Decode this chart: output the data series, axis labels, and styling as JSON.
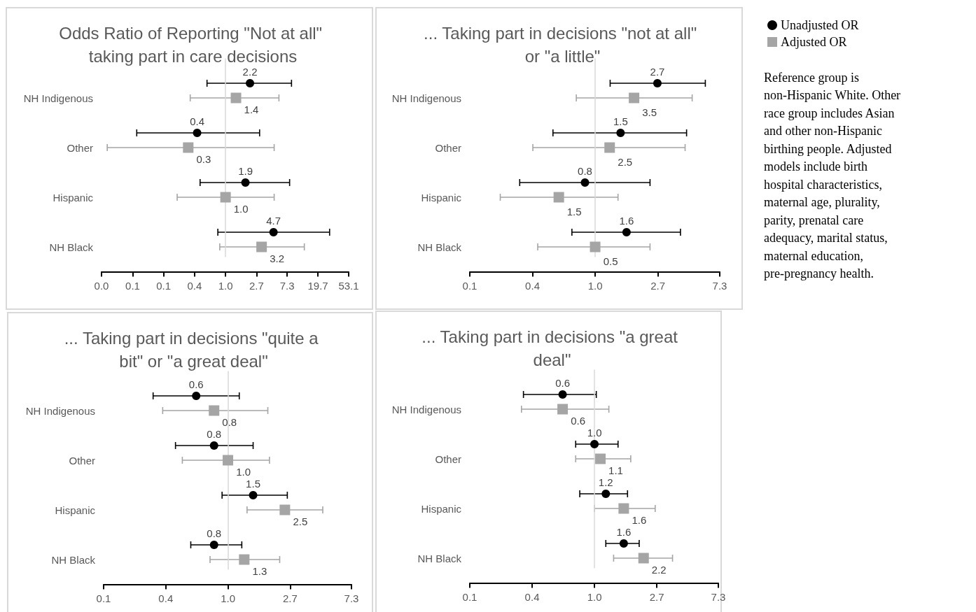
{
  "chart_data": [
    {
      "type": "scatter",
      "orientation": "horizontal",
      "title": "Odds Ratio of Reporting \"Not at all\" taking part in care decisions",
      "categories": [
        "NH Indigenous",
        "Other",
        "Hispanic",
        "NH Black"
      ],
      "log": "x",
      "xlim": [
        0.0183,
        53.1
      ],
      "xticks": [
        {
          "value": 0.0183,
          "label": "0.0"
        },
        {
          "value": 0.05,
          "label": "0.1"
        },
        {
          "value": 0.1353,
          "label": "0.1"
        },
        {
          "value": 0.3679,
          "label": "0.4"
        },
        {
          "value": 1,
          "label": "1.0"
        },
        {
          "value": 2.718,
          "label": "2.7"
        },
        7.3,
        19.7,
        53.1
      ],
      "ref_lines": [
        {
          "axis": "x",
          "value": 1,
          "color": "#d9d9d9"
        }
      ],
      "series": [
        {
          "color": "#000000",
          "marker": "circle",
          "values": [
            2.2,
            0.4,
            1.9,
            4.7
          ],
          "errors": [
            [
              0.55,
              8.4
            ],
            [
              0.057,
              3.0
            ],
            [
              0.44,
              7.9
            ],
            [
              0.78,
              28.7
            ]
          ],
          "value_labels": [
            "2.2",
            "0.4",
            "1.9",
            "4.7"
          ]
        },
        {
          "color": "#a5a5a5",
          "marker": "square",
          "values": [
            1.4,
            0.3,
            1.0,
            3.2
          ],
          "errors": [
            [
              0.32,
              5.6
            ],
            [
              0.022,
              4.8
            ],
            [
              0.21,
              4.8
            ],
            [
              0.83,
              12.7
            ]
          ],
          "value_labels": [
            "1.4",
            "0.3",
            "1.0",
            "3.2"
          ]
        }
      ]
    },
    {
      "type": "scatter",
      "orientation": "horizontal",
      "title": "... Taking part in decisions \"not at all\" or \"a little\"",
      "categories": [
        "NH Indigenous",
        "Other",
        "Hispanic",
        "NH Black"
      ],
      "log": "x",
      "xlim": [
        0.1353,
        7.3
      ],
      "xticks": [
        {
          "value": 0.1353,
          "label": "0.1"
        },
        {
          "value": 0.3679,
          "label": "0.4"
        },
        {
          "value": 1,
          "label": "1.0"
        },
        {
          "value": 2.718,
          "label": "2.7"
        },
        7.3
      ],
      "ref_lines": [
        {
          "axis": "x",
          "value": 1,
          "color": "#d9d9d9"
        }
      ],
      "legend": "right",
      "annotations": [
        "Reference group is non-Hispanic White. Other race group includes Asian and other non-Hispanic birthing people. Adjusted models include birth hospital characteristics, maternal age, plurality, parity, prenatal care adequacy, marital status, maternal education, pre-pregnancy health.",
        {
          "text": "3.5",
          "x": 1.86,
          "y": "NH Indigenous"
        },
        {
          "text": "2.5",
          "x": 1.26,
          "y": "Other"
        },
        {
          "text": "1.5",
          "x": 0.56,
          "y": "Hispanic"
        },
        {
          "text": "0.5",
          "x": 1.0,
          "y": "NH Black"
        }
      ],
      "series": [
        {
          "name": "Unadjusted OR",
          "color": "#000000",
          "marker": "circle",
          "values": [
            2.7,
            1.5,
            0.85,
            1.65
          ],
          "errors": [
            [
              1.27,
              5.8
            ],
            [
              0.51,
              4.3
            ],
            [
              0.3,
              2.4
            ],
            [
              0.69,
              3.9
            ]
          ],
          "value_labels": [
            "2.7",
            "1.5",
            "0.8",
            "1.6"
          ]
        },
        {
          "name": "Adjusted OR",
          "color": "#a5a5a5",
          "marker": "square",
          "values": [
            1.86,
            1.26,
            0.56,
            1.0
          ],
          "errors": [
            [
              0.74,
              4.7
            ],
            [
              0.37,
              4.2
            ],
            [
              0.22,
              1.44
            ],
            [
              0.4,
              2.4
            ]
          ]
        }
      ]
    },
    {
      "type": "scatter",
      "orientation": "horizontal",
      "title": "... Taking part in decisions \"quite a bit\" or \"a great deal\"",
      "categories": [
        "NH Indigenous",
        "Other",
        "Hispanic",
        "NH Black"
      ],
      "log": "x",
      "xlim": [
        0.1353,
        7.3
      ],
      "xticks": [
        {
          "value": 0.1353,
          "label": "0.1"
        },
        {
          "value": 0.3679,
          "label": "0.4"
        },
        {
          "value": 1,
          "label": "1.0"
        },
        {
          "value": 2.718,
          "label": "2.7"
        },
        7.3
      ],
      "ref_lines": [
        {
          "axis": "x",
          "value": 1,
          "color": "#d9d9d9"
        }
      ],
      "series": [
        {
          "color": "#000000",
          "marker": "circle",
          "values": [
            0.6,
            0.8,
            1.5,
            0.8
          ],
          "errors": [
            [
              0.3,
              1.2
            ],
            [
              0.43,
              1.5
            ],
            [
              0.91,
              2.6
            ],
            [
              0.55,
              1.25
            ]
          ],
          "value_labels": [
            "0.6",
            "0.8",
            "1.5",
            "0.8"
          ]
        },
        {
          "color": "#a5a5a5",
          "marker": "square",
          "values": [
            0.8,
            1.0,
            2.5,
            1.3
          ],
          "errors": [
            [
              0.35,
              1.9
            ],
            [
              0.48,
              1.95
            ],
            [
              1.36,
              4.6
            ],
            [
              0.75,
              2.3
            ]
          ],
          "value_labels": [
            "0.8",
            "1.0",
            "2.5",
            "1.3"
          ]
        }
      ]
    },
    {
      "type": "scatter",
      "orientation": "horizontal",
      "title": "... Taking part in decisions \"a great deal\"",
      "categories": [
        "NH Indigenous",
        "Other",
        "Hispanic",
        "NH Black"
      ],
      "log": "x",
      "xlim": [
        0.1353,
        7.3
      ],
      "xticks": [
        {
          "value": 0.1353,
          "label": "0.1"
        },
        {
          "value": 0.3679,
          "label": "0.4"
        },
        {
          "value": 1,
          "label": "1.0"
        },
        {
          "value": 2.718,
          "label": "2.7"
        },
        7.3
      ],
      "ref_lines": [
        {
          "axis": "x",
          "value": 1,
          "color": "#d9d9d9"
        }
      ],
      "series": [
        {
          "color": "#000000",
          "marker": "circle",
          "values": [
            0.6,
            1.0,
            1.2,
            1.6
          ],
          "errors": [
            [
              0.32,
              1.03
            ],
            [
              0.74,
              1.46
            ],
            [
              0.79,
              1.7
            ],
            [
              1.2,
              2.05
            ]
          ],
          "value_labels": [
            "0.6",
            "1.0",
            "1.2",
            "1.6"
          ]
        },
        {
          "color": "#a5a5a5",
          "marker": "square",
          "values": [
            0.6,
            1.1,
            1.6,
            2.2
          ],
          "errors": [
            [
              0.31,
              1.26
            ],
            [
              0.74,
              1.79
            ],
            [
              1.0,
              2.65
            ],
            [
              1.36,
              3.5
            ]
          ],
          "value_labels": [
            "0.6",
            "1.1",
            "1.6",
            "2.2"
          ]
        }
      ]
    }
  ]
}
